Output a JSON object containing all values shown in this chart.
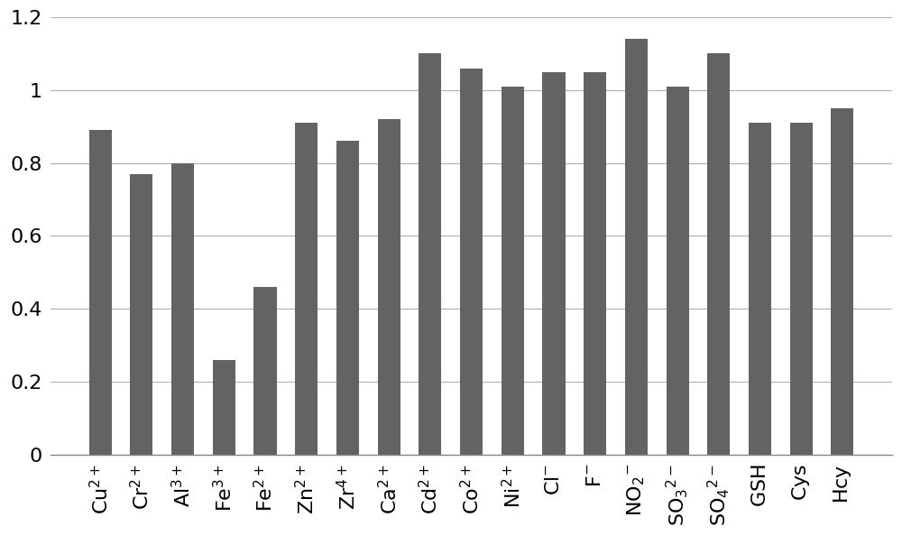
{
  "values": [
    0.89,
    0.77,
    0.8,
    0.26,
    0.46,
    0.91,
    0.86,
    0.92,
    1.1,
    1.06,
    1.01,
    1.05,
    1.05,
    1.14,
    1.01,
    1.1,
    0.91,
    0.91,
    0.95
  ],
  "bar_color": "#636363",
  "ylim": [
    0,
    1.2
  ],
  "yticks": [
    0,
    0.2,
    0.4,
    0.6,
    0.8,
    1.0,
    1.2
  ],
  "ytick_labels": [
    "0",
    "0.2",
    "0.4",
    "0.6",
    "0.8",
    "1",
    "1.2"
  ],
  "background_color": "#ffffff",
  "grid_color": "#b0b0b0",
  "bar_width": 0.55,
  "tick_fontsize": 16,
  "label_fontsize": 16
}
